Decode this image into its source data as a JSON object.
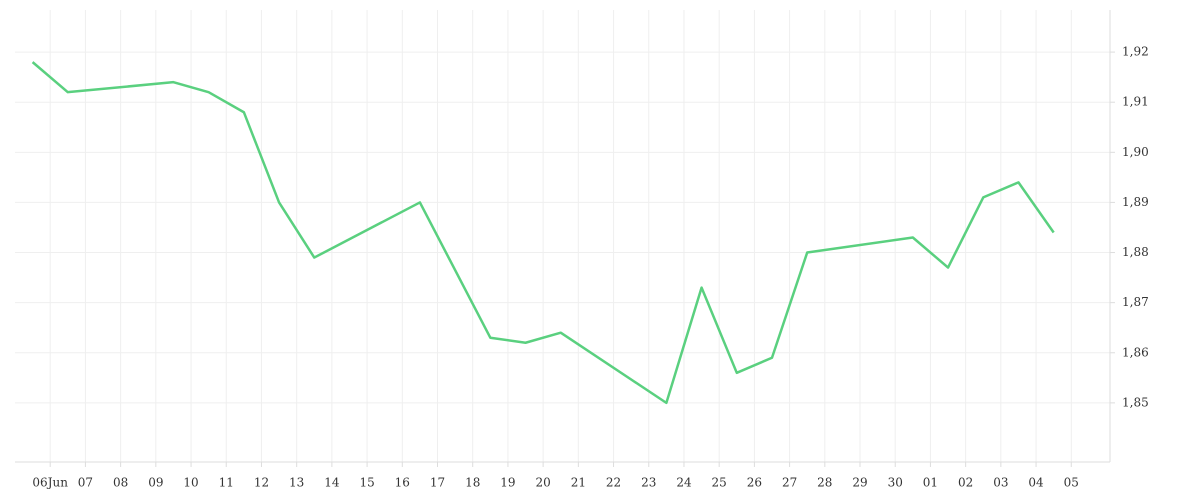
{
  "chart_data": {
    "type": "line",
    "x": [
      -0.5,
      0.5,
      3.5,
      4.5,
      5.5,
      6.5,
      7.5,
      10.5,
      12.5,
      13.5,
      14.5,
      17.5,
      18.5,
      19.5,
      20.5,
      21.5,
      24.5,
      25.5,
      26.5,
      27.5,
      28.5
    ],
    "series": [
      {
        "color": "#5ad07f",
        "values": [
          1.918,
          1.912,
          1.914,
          1.912,
          1.908,
          1.89,
          1.879,
          1.89,
          1.863,
          1.862,
          1.864,
          1.85,
          1.873,
          1.856,
          1.859,
          1.88,
          1.883,
          1.877,
          1.891,
          1.894,
          1.884
        ]
      }
    ],
    "xlim": [
      -1,
      30.1
    ],
    "xticks": [
      {
        "value": 0,
        "label": "06Jun"
      },
      {
        "value": 1,
        "label": "07"
      },
      {
        "value": 2,
        "label": "08"
      },
      {
        "value": 3,
        "label": "09"
      },
      10,
      11,
      12,
      13,
      14,
      15,
      16,
      17,
      18,
      19,
      20,
      21,
      22,
      23,
      24,
      25,
      26,
      27,
      28,
      29,
      30,
      {
        "value": 25,
        "label": "01"
      },
      {
        "value": 26,
        "label": "02"
      },
      {
        "value": 27,
        "label": "03"
      },
      {
        "value": 28,
        "label": "04"
      },
      {
        "value": 29,
        "label": "05"
      }
    ],
    "ylim": [
      1.8382,
      1.9284
    ],
    "yticks": [
      {
        "value": 1.85,
        "label": "1,85"
      },
      {
        "value": 1.86,
        "label": "1,86"
      },
      {
        "value": 1.87,
        "label": "1,87"
      },
      {
        "value": 1.88,
        "label": "1,88"
      },
      {
        "value": 1.89,
        "label": "1,89"
      },
      {
        "value": 1.9,
        "label": "1,90"
      },
      {
        "value": 1.91,
        "label": "1,91"
      },
      {
        "value": 1.92,
        "label": "1,92"
      }
    ],
    "grid": true
  }
}
